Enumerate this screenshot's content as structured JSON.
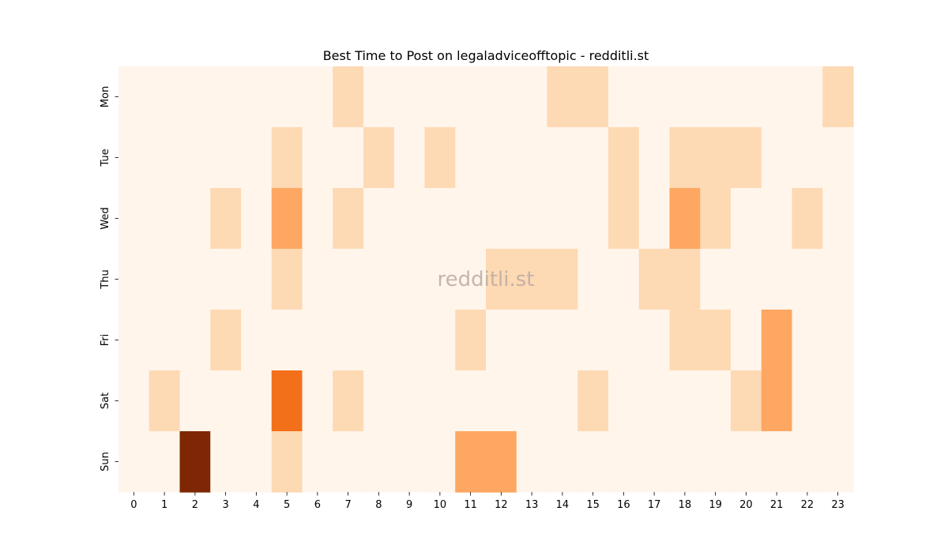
{
  "chart_data": {
    "type": "heatmap",
    "title": "Best Time to Post on legaladviceofftopic - redditli.st",
    "watermark": "redditli.st",
    "xlabel": "",
    "ylabel": "",
    "x_labels": [
      "0",
      "1",
      "2",
      "3",
      "4",
      "5",
      "6",
      "7",
      "8",
      "9",
      "10",
      "11",
      "12",
      "13",
      "14",
      "15",
      "16",
      "17",
      "18",
      "19",
      "20",
      "21",
      "22",
      "23"
    ],
    "y_labels": [
      "Mon",
      "Tue",
      "Wed",
      "Thu",
      "Fri",
      "Sat",
      "Sun"
    ],
    "values": [
      [
        0,
        0,
        0,
        0,
        0,
        0,
        0,
        1,
        0,
        0,
        0,
        0,
        0,
        0,
        1,
        1,
        0,
        0,
        0,
        0,
        0,
        0,
        0,
        1
      ],
      [
        0,
        0,
        0,
        0,
        0,
        1,
        0,
        0,
        1,
        0,
        1,
        0,
        0,
        0,
        0,
        0,
        1,
        0,
        1,
        1,
        1,
        0,
        0,
        0
      ],
      [
        0,
        0,
        0,
        1,
        0,
        3,
        0,
        1,
        0,
        0,
        0,
        0,
        0,
        0,
        0,
        0,
        1,
        0,
        3,
        1,
        0,
        0,
        1,
        0
      ],
      [
        0,
        0,
        0,
        0,
        0,
        1,
        0,
        0,
        0,
        0,
        0,
        0,
        1,
        1,
        1,
        0,
        0,
        1,
        1,
        0,
        0,
        0,
        0,
        0
      ],
      [
        0,
        0,
        0,
        1,
        0,
        0,
        0,
        0,
        0,
        0,
        0,
        1,
        0,
        0,
        0,
        0,
        0,
        0,
        1,
        1,
        0,
        3,
        0,
        0
      ],
      [
        0,
        1,
        0,
        0,
        0,
        5,
        0,
        1,
        0,
        0,
        0,
        0,
        0,
        0,
        0,
        1,
        0,
        0,
        0,
        0,
        1,
        3,
        0,
        0
      ],
      [
        0,
        0,
        9,
        0,
        0,
        1,
        0,
        0,
        0,
        0,
        0,
        3,
        3,
        0,
        0,
        0,
        0,
        0,
        0,
        0,
        0,
        0,
        0,
        0
      ]
    ],
    "value_range": [
      0,
      9
    ],
    "colormap": "Oranges",
    "colors": {
      "0": "#fff5eb",
      "1": "#fdd9b4",
      "3": "#fda762",
      "5": "#f3701b",
      "9": "#7f2704"
    },
    "grid": false,
    "legend": "none"
  }
}
